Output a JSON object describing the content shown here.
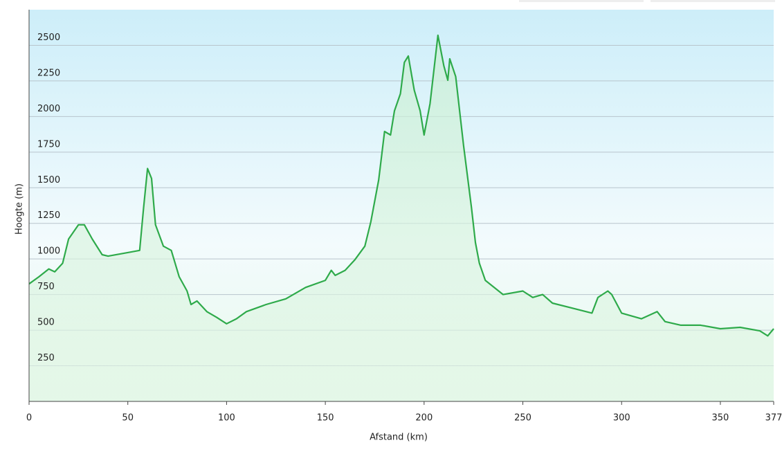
{
  "chart_data": {
    "type": "area",
    "xlabel": "Afstand  (km)",
    "ylabel": "Hoogte (m)",
    "x": [
      0,
      5,
      10,
      13,
      17,
      20,
      25,
      28,
      32,
      37,
      40,
      50,
      56,
      58,
      60,
      62,
      64,
      68,
      72,
      76,
      80,
      82,
      85,
      90,
      95,
      100,
      105,
      110,
      120,
      130,
      140,
      150,
      153,
      155,
      160,
      165,
      170,
      173,
      177,
      180,
      183,
      185,
      188,
      190,
      192,
      195,
      198,
      200,
      203,
      207,
      210,
      212,
      213,
      216,
      220,
      224,
      226,
      228,
      231,
      240,
      250,
      255,
      260,
      265,
      275,
      285,
      288,
      293,
      295,
      300,
      310,
      318,
      322,
      330,
      340,
      350,
      360,
      370,
      374,
      377
    ],
    "series": [
      {
        "name": "Hoogte",
        "color": "#2eaa4a",
        "values": [
          825,
          875,
          930,
          910,
          970,
          1140,
          1240,
          1240,
          1140,
          1030,
          1020,
          1045,
          1060,
          1360,
          1635,
          1565,
          1240,
          1090,
          1060,
          875,
          775,
          680,
          705,
          630,
          590,
          545,
          580,
          630,
          680,
          720,
          800,
          850,
          920,
          885,
          920,
          995,
          1090,
          1260,
          1555,
          1895,
          1870,
          2040,
          2160,
          2380,
          2425,
          2185,
          2040,
          1870,
          2090,
          2570,
          2355,
          2255,
          2405,
          2280,
          1795,
          1360,
          1115,
          970,
          850,
          750,
          775,
          730,
          750,
          690,
          655,
          620,
          730,
          775,
          750,
          620,
          580,
          630,
          560,
          535,
          535,
          510,
          520,
          495,
          460,
          510
        ]
      }
    ],
    "xlim": [
      0,
      377
    ],
    "xticks": [
      0,
      50,
      100,
      150,
      200,
      250,
      300,
      350,
      377
    ],
    "ylim": [
      0,
      2750
    ],
    "yticks": [
      250,
      500,
      750,
      1000,
      1250,
      1500,
      1750,
      2000,
      2250,
      2500
    ],
    "grid": true
  }
}
